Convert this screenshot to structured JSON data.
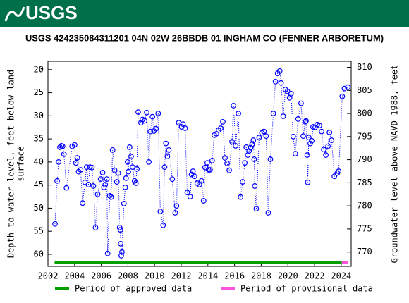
{
  "logo_text": "USGS",
  "chart_data": {
    "type": "line",
    "title": "USGS 424235084311201 04N 02W 26BBDB 01 INGHAM CO (FENNER ARBORETUM)",
    "ylabel": [
      "Depth to water level, feet below land",
      "surface"
    ],
    "y2label": "Groundwater level above NAVD 1988, feet",
    "xlim": [
      2002,
      2024.75
    ],
    "xticks": [
      2002,
      2004,
      2006,
      2008,
      2010,
      2012,
      2014,
      2016,
      2018,
      2020,
      2022,
      2024
    ],
    "ylim": [
      62.6,
      18.2
    ],
    "yticks": [
      20,
      25,
      30,
      35,
      40,
      45,
      50,
      55,
      60
    ],
    "y2lim": [
      766.9,
      811.3
    ],
    "y2ticks": [
      770,
      775,
      780,
      785,
      790,
      795,
      800,
      805,
      810
    ],
    "series": [
      {
        "name": "Depth to water level",
        "color": "#0000ff",
        "x": [
          2002.53,
          2002.69,
          2002.8,
          2002.9,
          2003.01,
          2003.1,
          2003.2,
          2003.39,
          2003.81,
          2004.0,
          2004.1,
          2004.2,
          2004.3,
          2004.45,
          2004.6,
          2004.78,
          2004.9,
          2005.04,
          2005.15,
          2005.3,
          2005.41,
          2005.57,
          2005.73,
          2005.95,
          2006.1,
          2006.2,
          2006.3,
          2006.42,
          2006.48,
          2006.64,
          2006.74,
          2006.85,
          2007.0,
          2007.17,
          2007.28,
          2007.38,
          2007.44,
          2007.46,
          2007.5,
          2007.55,
          2007.7,
          2007.8,
          2007.86,
          2007.97,
          2008.03,
          2008.13,
          2008.24,
          2008.35,
          2008.5,
          2008.6,
          2008.67,
          2008.77,
          2008.98,
          2009.09,
          2009.25,
          2009.41,
          2009.57,
          2009.68,
          2009.84,
          2009.95,
          2010.1,
          2010.27,
          2010.43,
          2010.64,
          2010.75,
          2010.85,
          2010.96,
          2011.07,
          2011.33,
          2011.55,
          2011.65,
          2011.81,
          2012.03,
          2012.13,
          2012.29,
          2012.45,
          2012.67,
          2012.77,
          2012.88,
          2012.99,
          2013.2,
          2013.36,
          2013.52,
          2013.68,
          2013.79,
          2013.95,
          2014.05,
          2014.16,
          2014.32,
          2014.48,
          2014.64,
          2014.8,
          2014.96,
          2015.12,
          2015.28,
          2015.44,
          2015.6,
          2015.81,
          2015.92,
          2016.08,
          2016.29,
          2016.45,
          2016.61,
          2016.77,
          2016.88,
          2016.99,
          2017.09,
          2017.2,
          2017.31,
          2017.41,
          2017.47,
          2017.52,
          2017.63,
          2017.84,
          2018.05,
          2018.21,
          2018.37,
          2018.53,
          2018.69,
          2018.91,
          2019.07,
          2019.23,
          2019.39,
          2019.49,
          2019.65,
          2019.81,
          2019.97,
          2020.13,
          2020.24,
          2020.4,
          2020.56,
          2020.77,
          2020.99,
          2021.15,
          2021.31,
          2021.36,
          2021.45,
          2021.49,
          2021.57,
          2021.68,
          2021.79,
          2021.89,
          2022.05,
          2022.21,
          2022.37,
          2022.53,
          2022.69,
          2022.85,
          2023.01,
          2023.12,
          2023.28,
          2023.49,
          2023.71,
          2023.81,
          2024.08,
          2024.24,
          2024.5
        ],
        "values": [
          53.4,
          44.1,
          40.0,
          36.8,
          36.5,
          36.6,
          38.3,
          45.6,
          36.6,
          36.3,
          40.2,
          39.1,
          42.1,
          41.7,
          48.9,
          44.4,
          41.1,
          44.9,
          41.1,
          41.2,
          45.2,
          54.2,
          47.0,
          43.7,
          42.3,
          45.5,
          44.9,
          43.7,
          59.8,
          47.3,
          47.6,
          37.4,
          41.8,
          44.3,
          42.4,
          54.2,
          54.7,
          57.7,
          60.3,
          59.5,
          49.0,
          45.5,
          43.5,
          40.0,
          42.1,
          36.8,
          38.8,
          41.1,
          44.1,
          44.6,
          41.5,
          29.2,
          31.5,
          30.8,
          31.1,
          29.3,
          40.0,
          33.4,
          30.2,
          33.3,
          32.8,
          29.5,
          50.7,
          53.7,
          41.1,
          36.0,
          38.8,
          37.4,
          43.7,
          51.0,
          49.5,
          31.5,
          32.4,
          31.8,
          32.7,
          46.6,
          47.5,
          42.7,
          42.0,
          43.1,
          44.6,
          44.9,
          44.1,
          48.4,
          41.2,
          40.2,
          41.7,
          41.7,
          39.7,
          34.2,
          33.9,
          33.1,
          32.7,
          31.3,
          39.1,
          40.3,
          41.8,
          35.6,
          27.8,
          36.5,
          29.5,
          47.6,
          44.3,
          40.2,
          36.8,
          38.5,
          37.6,
          36.9,
          36.2,
          35.3,
          39.4,
          45.2,
          50.1,
          34.7,
          33.7,
          33.4,
          34.4,
          51.0,
          39.4,
          29.5,
          22.6,
          20.8,
          20.3,
          22.9,
          30.1,
          24.3,
          24.7,
          26.1,
          25.2,
          34.5,
          38.2,
          30.7,
          27.3,
          34.4,
          31.3,
          31.1,
          38.5,
          44.4,
          34.7,
          36.0,
          35.4,
          32.4,
          32.5,
          31.9,
          32.1,
          33.4,
          37.3,
          38.5,
          36.6,
          33.6,
          35.3,
          43.1,
          42.4,
          42.0,
          25.8,
          24.1,
          23.8
        ]
      }
    ],
    "periods": [
      {
        "name": "Period of approved data",
        "color": "#00a000",
        "start": 2002.5,
        "end": 2024.05
      },
      {
        "name": "Period of provisional data",
        "color": "#ff55dd",
        "start": 2024.05,
        "end": 2024.5
      }
    ]
  }
}
